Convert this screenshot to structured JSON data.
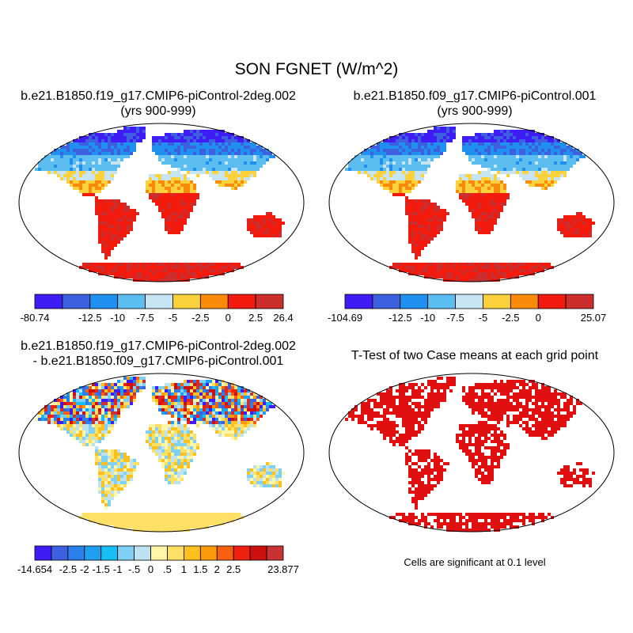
{
  "figure": {
    "title": "SON FGNET (W/m^2)",
    "significance_note": "Cells are significant at 0.1 level"
  },
  "chart_data": [
    {
      "type": "heatmap",
      "title": "b.e21.B1850.f19_g17.CMIP6-piControl-2deg.002",
      "subtitle": "(yrs 900-999)",
      "projection": "robinson",
      "colorbar": {
        "colors": [
          "#3f1bf5",
          "#3c60e0",
          "#1f8ff0",
          "#5bbdf0",
          "#c7e4f2",
          "#fbd23b",
          "#f98a0a",
          "#f11a0d",
          "#cc2d2d"
        ],
        "ticks": [
          "-80.74",
          "-12.5",
          "-10",
          "-7.5",
          "-5",
          "-2.5",
          "0",
          "2.5",
          "26.4"
        ],
        "tick_after_box": [
          0,
          2,
          3,
          4,
          5,
          6,
          7,
          8,
          9
        ]
      }
    },
    {
      "type": "heatmap",
      "title": "b.e21.B1850.f09_g17.CMIP6-piControl.001",
      "subtitle": "(yrs 900-999)",
      "projection": "robinson",
      "colorbar": {
        "colors": [
          "#3f1bf5",
          "#3c60e0",
          "#1f8ff0",
          "#5bbdf0",
          "#c7e4f2",
          "#fbd23b",
          "#f98a0a",
          "#f11a0d",
          "#cc2d2d"
        ],
        "ticks": [
          "-104.69",
          "-12.5",
          "-10",
          "-7.5",
          "-5",
          "-2.5",
          "0",
          "25.07"
        ],
        "tick_after_box": [
          0,
          2,
          3,
          4,
          5,
          6,
          7,
          9
        ]
      }
    },
    {
      "type": "heatmap",
      "title": "b.e21.B1850.f19_g17.CMIP6-piControl-2deg.002",
      "subtitle": "- b.e21.B1850.f09_g17.CMIP6-piControl.001",
      "projection": "robinson",
      "colorbar": {
        "colors": [
          "#3f1bf5",
          "#3c60e0",
          "#2a7fe8",
          "#1f9ff0",
          "#18bdf3",
          "#7fd0f5",
          "#bde3f2",
          "#fff6a8",
          "#ffe066",
          "#ffc020",
          "#fb9a0a",
          "#f76010",
          "#f02010",
          "#cc0f0f",
          "#c83232"
        ],
        "ticks": [
          "-14.654",
          "-2.5",
          "-2",
          "-1.5",
          "-1",
          "-.5",
          "0",
          ".5",
          "1",
          "1.5",
          "2",
          "2.5",
          "23.877"
        ],
        "tick_after_box": [
          0,
          2,
          3,
          4,
          5,
          6,
          7,
          8,
          9,
          10,
          11,
          12,
          15
        ]
      }
    },
    {
      "type": "heatmap",
      "title": "T-Test of two Case means at each grid point",
      "projection": "robinson",
      "significant_color": "#e11010"
    }
  ]
}
